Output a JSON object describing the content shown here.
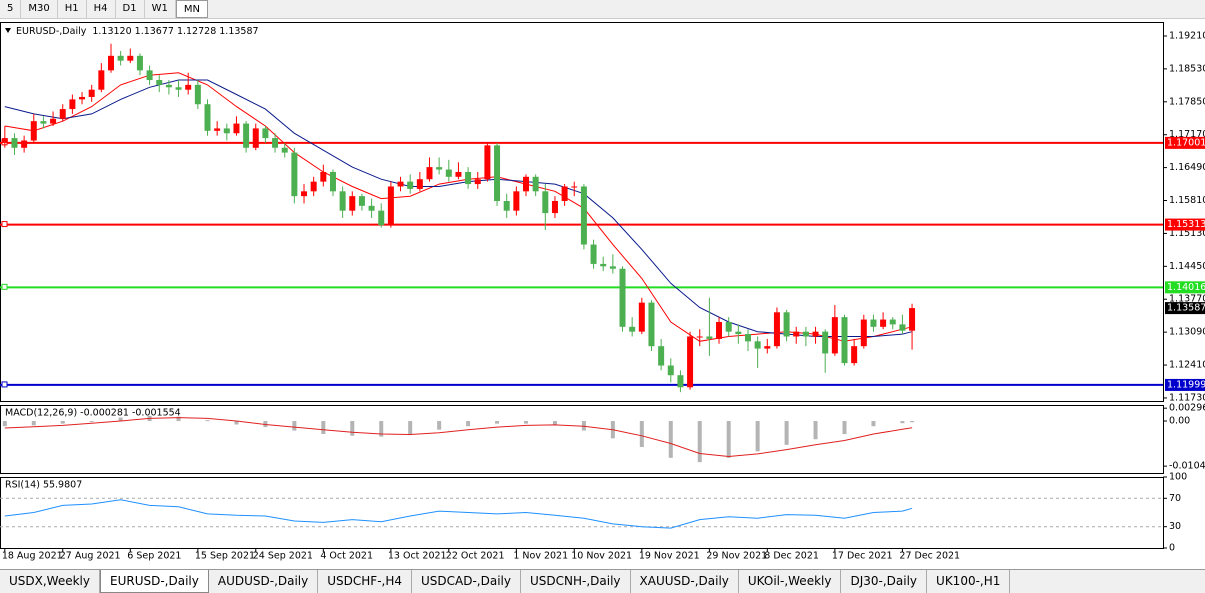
{
  "toolbar": [
    "5",
    "M30",
    "H1",
    "H4",
    "D1",
    "W1",
    "MN"
  ],
  "toolbar_active": 6,
  "tabs": [
    "USDX,Weekly",
    "EURUSD-,Daily",
    "AUDUSD-,Daily",
    "USDCHF-,H4",
    "USDCAD-,Daily",
    "USDCNH-,Daily",
    "XAUUSD-,Daily",
    "UKOil-,Weekly",
    "DJ30-,Daily",
    "UK100-,H1"
  ],
  "tabs_active": 1,
  "chart_data": [
    {
      "type": "candlestick",
      "title": "EURUSD-,Daily",
      "subtitle": "1.13120 1.13677 1.12728 1.13587",
      "up_color": "#ff0000",
      "down_color": "#4caf50",
      "xlim": [
        -0.5,
        120
      ],
      "ylim": [
        1.11667,
        1.19499
      ],
      "xticks": [
        {
          "value": 0,
          "label": "18 Aug 2021"
        },
        {
          "value": 6,
          "label": "27 Aug 2021"
        },
        {
          "value": 13,
          "label": "6 Sep 2021"
        },
        {
          "value": 20,
          "label": "15 Sep 2021"
        },
        {
          "value": 26,
          "label": "24 Sep 2021"
        },
        {
          "value": 33,
          "label": "4 Oct 2021"
        },
        {
          "value": 40,
          "label": "13 Oct 2021"
        },
        {
          "value": 46,
          "label": "22 Oct 2021"
        },
        {
          "value": 53,
          "label": "1 Nov 2021"
        },
        {
          "value": 59,
          "label": "10 Nov 2021"
        },
        {
          "value": 66,
          "label": "19 Nov 2021"
        },
        {
          "value": 73,
          "label": "29 Nov 2021"
        },
        {
          "value": 79,
          "label": "8 Dec 2021"
        },
        {
          "value": 86,
          "label": "17 Dec 2021"
        },
        {
          "value": 93,
          "label": "27 Dec 2021"
        }
      ],
      "yticks": [
        {
          "value": 1.1921,
          "label": "1.19210"
        },
        {
          "value": 1.1853,
          "label": "1.18530"
        },
        {
          "value": 1.1785,
          "label": "1.17850"
        },
        {
          "value": 1.1717,
          "label": "1.17170"
        },
        {
          "value": 1.1649,
          "label": "1.16490"
        },
        {
          "value": 1.1581,
          "label": "1.15810"
        },
        {
          "value": 1.1513,
          "label": "1.15130"
        },
        {
          "value": 1.1445,
          "label": "1.14450"
        },
        {
          "value": 1.1377,
          "label": "1.13770"
        },
        {
          "value": 1.1309,
          "label": "1.13090"
        },
        {
          "value": 1.1241,
          "label": "1.12410"
        },
        {
          "value": 1.1173,
          "label": "1.11730"
        }
      ],
      "levels": [
        {
          "value": 1.17001,
          "color": "#ff0000"
        },
        {
          "value": 1.15313,
          "color": "#ff0000"
        },
        {
          "value": 1.14016,
          "color": "#22dd22"
        },
        {
          "value": 1.11999,
          "color": "#0000cc"
        }
      ],
      "candles": [
        [
          1.17,
          1.1735,
          1.169,
          1.171
        ],
        [
          1.171,
          1.172,
          1.1675,
          1.169
        ],
        [
          1.169,
          1.1715,
          1.168,
          1.1705
        ],
        [
          1.1705,
          1.176,
          1.17,
          1.1745
        ],
        [
          1.1745,
          1.1755,
          1.173,
          1.174
        ],
        [
          1.174,
          1.1765,
          1.1735,
          1.175
        ],
        [
          1.175,
          1.178,
          1.1745,
          1.177
        ],
        [
          1.177,
          1.18,
          1.176,
          1.179
        ],
        [
          1.179,
          1.1805,
          1.178,
          1.1795
        ],
        [
          1.1795,
          1.182,
          1.1785,
          1.181
        ],
        [
          1.181,
          1.1865,
          1.1805,
          1.185
        ],
        [
          1.185,
          1.1905,
          1.1845,
          1.188
        ],
        [
          1.188,
          1.189,
          1.186,
          1.187
        ],
        [
          1.187,
          1.1895,
          1.1865,
          1.188
        ],
        [
          1.188,
          1.1885,
          1.184,
          1.185
        ],
        [
          1.185,
          1.186,
          1.182,
          1.183
        ],
        [
          1.183,
          1.184,
          1.1805,
          1.182
        ],
        [
          1.182,
          1.183,
          1.18,
          1.1815
        ],
        [
          1.1815,
          1.183,
          1.1795,
          1.181
        ],
        [
          1.181,
          1.1845,
          1.18,
          1.182
        ],
        [
          1.182,
          1.183,
          1.177,
          1.178
        ],
        [
          1.178,
          1.179,
          1.1715,
          1.1725
        ],
        [
          1.1725,
          1.1745,
          1.1715,
          1.173
        ],
        [
          1.173,
          1.174,
          1.1705,
          1.172
        ],
        [
          1.172,
          1.1755,
          1.1715,
          1.174
        ],
        [
          1.174,
          1.1745,
          1.168,
          1.169
        ],
        [
          1.169,
          1.174,
          1.1685,
          1.173
        ],
        [
          1.173,
          1.1735,
          1.17,
          1.171
        ],
        [
          1.171,
          1.172,
          1.168,
          1.169
        ],
        [
          1.169,
          1.17,
          1.167,
          1.168
        ],
        [
          1.168,
          1.169,
          1.1575,
          1.159
        ],
        [
          1.159,
          1.1615,
          1.1575,
          1.16
        ],
        [
          1.16,
          1.163,
          1.159,
          1.162
        ],
        [
          1.162,
          1.1655,
          1.161,
          1.164
        ],
        [
          1.164,
          1.1645,
          1.159,
          1.16
        ],
        [
          1.16,
          1.161,
          1.1545,
          1.156
        ],
        [
          1.156,
          1.16,
          1.155,
          1.159
        ],
        [
          1.159,
          1.1595,
          1.156,
          1.157
        ],
        [
          1.157,
          1.1585,
          1.1545,
          1.156
        ],
        [
          1.156,
          1.1575,
          1.1525,
          1.153
        ],
        [
          1.153,
          1.162,
          1.1525,
          1.161
        ],
        [
          1.161,
          1.163,
          1.16,
          1.162
        ],
        [
          1.162,
          1.1635,
          1.1595,
          1.1605
        ],
        [
          1.1605,
          1.164,
          1.16,
          1.1625
        ],
        [
          1.1625,
          1.167,
          1.162,
          1.165
        ],
        [
          1.165,
          1.167,
          1.1635,
          1.1645
        ],
        [
          1.1645,
          1.1665,
          1.162,
          1.163
        ],
        [
          1.163,
          1.166,
          1.1625,
          1.164
        ],
        [
          1.164,
          1.165,
          1.1605,
          1.1615
        ],
        [
          1.1615,
          1.164,
          1.1605,
          1.1625
        ],
        [
          1.1625,
          1.17,
          1.162,
          1.1695
        ],
        [
          1.1695,
          1.17,
          1.157,
          1.158
        ],
        [
          1.158,
          1.1595,
          1.1545,
          1.156
        ],
        [
          1.156,
          1.161,
          1.155,
          1.16
        ],
        [
          1.16,
          1.1635,
          1.159,
          1.163
        ],
        [
          1.163,
          1.1635,
          1.159,
          1.16
        ],
        [
          1.16,
          1.1615,
          1.152,
          1.1555
        ],
        [
          1.1555,
          1.159,
          1.1545,
          1.158
        ],
        [
          1.158,
          1.1615,
          1.157,
          1.161
        ],
        [
          1.161,
          1.162,
          1.159,
          1.161
        ],
        [
          1.161,
          1.1615,
          1.148,
          1.149
        ],
        [
          1.149,
          1.15,
          1.144,
          1.145
        ],
        [
          1.145,
          1.1465,
          1.1435,
          1.1445
        ],
        [
          1.1445,
          1.147,
          1.143,
          1.144
        ],
        [
          1.144,
          1.1445,
          1.131,
          1.132
        ],
        [
          1.132,
          1.134,
          1.13,
          1.131
        ],
        [
          1.131,
          1.138,
          1.1305,
          1.137
        ],
        [
          1.137,
          1.1375,
          1.127,
          1.128
        ],
        [
          1.128,
          1.1295,
          1.123,
          1.124
        ],
        [
          1.124,
          1.1255,
          1.1205,
          1.122
        ],
        [
          1.122,
          1.123,
          1.1185,
          1.1195
        ],
        [
          1.1195,
          1.131,
          1.119,
          1.13
        ],
        [
          1.13,
          1.1315,
          1.128,
          1.13
        ],
        [
          1.13,
          1.138,
          1.126,
          1.1295
        ],
        [
          1.1295,
          1.134,
          1.1285,
          1.133
        ],
        [
          1.133,
          1.134,
          1.13,
          1.131
        ],
        [
          1.131,
          1.1325,
          1.1285,
          1.1305
        ],
        [
          1.1305,
          1.1315,
          1.127,
          1.129
        ],
        [
          1.129,
          1.13,
          1.1235,
          1.1275
        ],
        [
          1.1275,
          1.1295,
          1.1265,
          1.128
        ],
        [
          1.128,
          1.136,
          1.1275,
          1.135
        ],
        [
          1.135,
          1.1355,
          1.129,
          1.13
        ],
        [
          1.13,
          1.132,
          1.1285,
          1.131
        ],
        [
          1.131,
          1.132,
          1.128,
          1.13
        ],
        [
          1.13,
          1.132,
          1.1285,
          1.131
        ],
        [
          1.131,
          1.1315,
          1.1225,
          1.1265
        ],
        [
          1.1265,
          1.1365,
          1.126,
          1.134
        ],
        [
          1.134,
          1.1345,
          1.124,
          1.1245
        ],
        [
          1.1245,
          1.1295,
          1.124,
          1.128
        ],
        [
          1.128,
          1.1345,
          1.1275,
          1.1335
        ],
        [
          1.1335,
          1.1345,
          1.131,
          1.132
        ],
        [
          1.132,
          1.135,
          1.1315,
          1.1335
        ],
        [
          1.1335,
          1.134,
          1.1315,
          1.1325
        ],
        [
          1.1325,
          1.1345,
          1.1305,
          1.1312
        ],
        [
          1.1312,
          1.13677,
          1.12728,
          1.13587
        ]
      ],
      "series": [
        {
          "color": "#ff0000",
          "x": [
            0,
            3,
            6,
            9,
            12,
            15,
            18,
            21,
            24,
            27,
            30,
            33,
            36,
            39,
            42,
            45,
            48,
            51,
            54,
            57,
            60,
            63,
            66,
            69,
            72,
            75,
            78,
            81,
            84,
            87,
            90,
            93,
            94
          ],
          "values": [
            1.1735,
            1.1725,
            1.1745,
            1.1775,
            1.182,
            1.184,
            1.1845,
            1.182,
            1.1775,
            1.1735,
            1.168,
            1.164,
            1.161,
            1.1585,
            1.159,
            1.1615,
            1.1625,
            1.163,
            1.1615,
            1.16,
            1.1565,
            1.149,
            1.142,
            1.133,
            1.129,
            1.13,
            1.1305,
            1.131,
            1.1305,
            1.129,
            1.13,
            1.1315,
            1.132
          ]
        },
        {
          "color": "#0a1a8c",
          "x": [
            0,
            3,
            6,
            9,
            12,
            15,
            18,
            21,
            24,
            27,
            30,
            33,
            36,
            39,
            42,
            45,
            48,
            51,
            54,
            57,
            60,
            63,
            66,
            69,
            72,
            75,
            78,
            81,
            84,
            87,
            90,
            93,
            94
          ],
          "values": [
            1.1775,
            1.176,
            1.175,
            1.176,
            1.179,
            1.1815,
            1.183,
            1.183,
            1.18,
            1.177,
            1.172,
            1.1685,
            1.165,
            1.1625,
            1.161,
            1.161,
            1.162,
            1.1625,
            1.162,
            1.1615,
            1.1595,
            1.1545,
            1.148,
            1.141,
            1.136,
            1.133,
            1.131,
            1.1305,
            1.13,
            1.13,
            1.13,
            1.1305,
            1.131
          ]
        }
      ]
    },
    {
      "type": "macd",
      "title": "MACD(12,26,9) -0.000281 -0.001554",
      "xlim": [
        -0.5,
        120
      ],
      "ylim": [
        -0.012,
        0.0037
      ],
      "yticks": [
        0.002966,
        {
          "value": 0,
          "label": "0.00"
        },
        -0.01042
      ],
      "hist_color": "#b4b4b4",
      "x": [
        0,
        3,
        6,
        9,
        12,
        15,
        18,
        21,
        24,
        27,
        30,
        33,
        36,
        39,
        42,
        45,
        48,
        51,
        54,
        57,
        60,
        63,
        66,
        69,
        72,
        75,
        78,
        81,
        84,
        87,
        90,
        93,
        94
      ],
      "values": [
        -0.0012,
        -0.001,
        -0.0006,
        0,
        0.0008,
        0.0012,
        0.001,
        0.0002,
        -0.0008,
        -0.0014,
        -0.0022,
        -0.003,
        -0.0034,
        -0.0036,
        -0.003,
        -0.002,
        -0.0012,
        -0.0006,
        -0.0006,
        -0.001,
        -0.0022,
        -0.004,
        -0.006,
        -0.0085,
        -0.0095,
        -0.0085,
        -0.007,
        -0.0055,
        -0.0042,
        -0.003,
        -0.0012,
        -0.0005,
        -0.000281
      ],
      "series": [
        {
          "color": "#e02020",
          "values": [
            -0.0016,
            -0.0013,
            -0.001,
            -0.0005,
            0,
            0.0006,
            0.0008,
            0.0006,
            0,
            -0.0008,
            -0.0014,
            -0.002,
            -0.0026,
            -0.003,
            -0.0031,
            -0.0027,
            -0.002,
            -0.0014,
            -0.001,
            -0.0009,
            -0.0012,
            -0.002,
            -0.0034,
            -0.0052,
            -0.0075,
            -0.0082,
            -0.0076,
            -0.0066,
            -0.0055,
            -0.0045,
            -0.003,
            -0.0019,
            -0.001554
          ]
        }
      ]
    },
    {
      "type": "rsi",
      "title": "RSI(14) 55.9807",
      "xlim": [
        -0.5,
        120
      ],
      "ylim": [
        0,
        100
      ],
      "yticks": [
        100,
        70,
        30,
        0
      ],
      "color": "#1e90ff",
      "x": [
        0,
        3,
        6,
        9,
        12,
        15,
        18,
        21,
        24,
        27,
        30,
        33,
        36,
        39,
        42,
        45,
        48,
        51,
        54,
        57,
        60,
        63,
        66,
        69,
        72,
        75,
        78,
        81,
        84,
        87,
        90,
        93,
        94
      ],
      "values": [
        45,
        50,
        60,
        62,
        68,
        60,
        58,
        48,
        46,
        45,
        38,
        36,
        40,
        37,
        45,
        52,
        50,
        48,
        50,
        46,
        42,
        34,
        30,
        28,
        40,
        44,
        42,
        47,
        46,
        42,
        50,
        52,
        55.9807
      ]
    }
  ]
}
